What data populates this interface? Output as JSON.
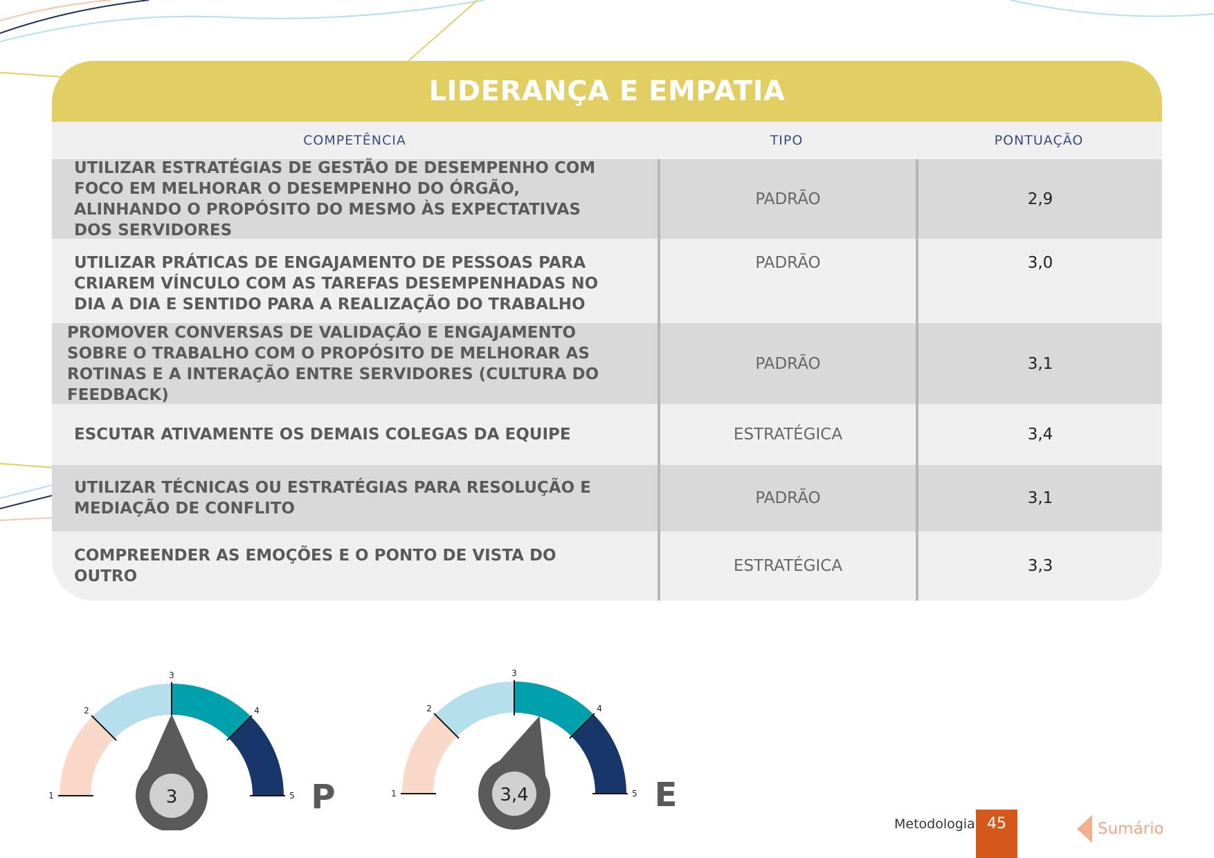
{
  "title": "LIDERANÇA E EMPATIA",
  "headers": {
    "competencia": "COMPETÊNCIA",
    "tipo": "TIPO",
    "pontuacao": "PONTUAÇÃO"
  },
  "rows": [
    {
      "competencia": "UTILIZAR ESTRATÉGIAS DE GESTÃO DE DESEMPENHO COM FOCO EM MELHORAR O DESEMPENHO DO ÓRGÃO, ALINHANDO O PROPÓSITO DO MESMO ÀS EXPECTATIVAS DOS SERVIDORES",
      "tipo": "PADRÃO",
      "pontuacao": "2,9"
    },
    {
      "competencia": "UTILIZAR PRÁTICAS DE ENGAJAMENTO DE PESSOAS PARA CRIAREM VÍNCULO COM AS TAREFAS DESEMPENHADAS NO DIA A DIA E SENTIDO PARA A REALIZAÇÃO DO TRABALHO",
      "tipo": "PADRÃO",
      "pontuacao": "3,0"
    },
    {
      "competencia": "PROMOVER CONVERSAS DE VALIDAÇÃO E ENGAJAMENTO SOBRE O TRABALHO COM O PROPÓSITO DE MELHORAR AS ROTINAS E A INTERAÇÃO ENTRE SERVIDORES (CULTURA DO FEEDBACK)",
      "tipo": "PADRÃO",
      "pontuacao": "3,1"
    },
    {
      "competencia": "ESCUTAR ATIVAMENTE OS DEMAIS COLEGAS DA EQUIPE",
      "tipo": "ESTRATÉGICA",
      "pontuacao": "3,4"
    },
    {
      "competencia": "UTILIZAR TÉCNICAS OU ESTRATÉGIAS PARA RESOLUÇÃO E MEDIAÇÃO DE CONFLITO",
      "tipo": "PADRÃO",
      "pontuacao": "3,1"
    },
    {
      "competencia": "COMPREENDER AS EMOÇÕES E O PONTO DE VISTA DO OUTRO",
      "tipo": "ESTRATÉGICA",
      "pontuacao": "3,3"
    }
  ],
  "gauges": [
    {
      "value": 3.0,
      "value_label": "3",
      "letter": "P"
    },
    {
      "value": 3.4,
      "value_label": "3,4",
      "letter": "E"
    }
  ],
  "gauge_scale": {
    "min": 1,
    "max": 5,
    "ticks": [
      "1",
      "2",
      "3",
      "4",
      "5"
    ]
  },
  "gauge_colors": [
    "#fad9c8",
    "#b6dfee",
    "#00a0ad",
    "#17376b"
  ],
  "footer": {
    "section": "Metodologia",
    "page": "45",
    "sumario": "Sumário"
  },
  "colors": {
    "title_bar": "#e1cf63",
    "accent": "#d4581c"
  }
}
